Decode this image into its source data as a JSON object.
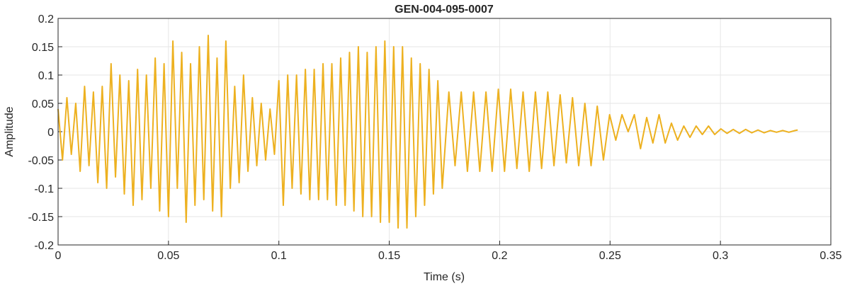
{
  "chart_data": {
    "type": "line",
    "title": "GEN-004-095-0007",
    "x_label": "Time (s)",
    "y_label": "Amplitude",
    "xlim": [
      0,
      0.35
    ],
    "ylim": [
      -0.2,
      0.2
    ],
    "xticks": [
      0,
      0.05,
      0.1,
      0.15,
      0.2,
      0.25,
      0.3,
      0.35
    ],
    "yticks": [
      -0.2,
      -0.15,
      -0.1,
      -0.05,
      0,
      0.05,
      0.1,
      0.15,
      0.2
    ],
    "grid": true,
    "series": [
      {
        "color": "#edb120",
        "x": [
          0,
          0.002,
          0.004,
          0.006,
          0.008,
          0.01,
          0.012,
          0.014,
          0.016,
          0.018,
          0.02,
          0.022,
          0.024,
          0.026,
          0.028,
          0.03,
          0.032,
          0.034,
          0.036,
          0.038,
          0.04,
          0.042,
          0.044,
          0.046,
          0.048,
          0.05,
          0.052,
          0.054,
          0.056,
          0.058,
          0.06,
          0.062,
          0.064,
          0.066,
          0.068,
          0.07,
          0.072,
          0.074,
          0.076,
          0.078,
          0.08,
          0.082,
          0.084,
          0.086,
          0.088,
          0.09,
          0.092,
          0.094,
          0.096,
          0.098,
          0.1,
          0.102,
          0.104,
          0.106,
          0.108,
          0.11,
          0.112,
          0.114,
          0.116,
          0.118,
          0.12,
          0.122,
          0.124,
          0.126,
          0.128,
          0.13,
          0.132,
          0.134,
          0.136,
          0.138,
          0.14,
          0.142,
          0.144,
          0.146,
          0.148,
          0.15,
          0.152,
          0.154,
          0.156,
          0.158,
          0.16,
          0.162,
          0.164,
          0.166,
          0.168,
          0.17,
          0.172,
          0.174,
          0.177,
          0.1798,
          0.1826,
          0.1854,
          0.1882,
          0.191,
          0.1938,
          0.1966,
          0.1994,
          0.2022,
          0.205,
          0.2078,
          0.2106,
          0.2134,
          0.2162,
          0.219,
          0.2218,
          0.2246,
          0.2274,
          0.2302,
          0.233,
          0.2358,
          0.2386,
          0.2414,
          0.2442,
          0.247,
          0.2498,
          0.2526,
          0.2554,
          0.2582,
          0.261,
          0.2638,
          0.2666,
          0.2694,
          0.2722,
          0.275,
          0.2778,
          0.2806,
          0.2834,
          0.2862,
          0.289,
          0.2918,
          0.2946,
          0.2974,
          0.3002,
          0.303,
          0.3058,
          0.3086,
          0.3114,
          0.3142,
          0.317,
          0.3198,
          0.3226,
          0.3254,
          0.3282,
          0.331,
          0.3338,
          0.335
        ],
        "values": [
          0.04,
          -0.05,
          0.06,
          -0.04,
          0.05,
          -0.07,
          0.08,
          -0.06,
          0.07,
          -0.09,
          0.08,
          -0.1,
          0.12,
          -0.08,
          0.1,
          -0.11,
          0.09,
          -0.13,
          0.11,
          -0.12,
          0.1,
          -0.1,
          0.13,
          -0.14,
          0.12,
          -0.15,
          0.16,
          -0.1,
          0.14,
          -0.16,
          0.12,
          -0.13,
          0.15,
          -0.12,
          0.17,
          -0.14,
          0.13,
          -0.15,
          0.16,
          -0.1,
          0.08,
          -0.09,
          0.1,
          -0.07,
          0.06,
          -0.06,
          0.05,
          -0.05,
          0.04,
          -0.04,
          0.09,
          -0.13,
          0.1,
          -0.1,
          0.1,
          -0.11,
          0.11,
          -0.12,
          0.11,
          -0.12,
          0.12,
          -0.12,
          0.12,
          -0.13,
          0.13,
          -0.13,
          0.14,
          -0.14,
          0.15,
          -0.15,
          0.14,
          -0.15,
          0.15,
          -0.16,
          0.16,
          -0.16,
          0.15,
          -0.17,
          0.15,
          -0.17,
          0.13,
          -0.15,
          0.12,
          -0.13,
          0.11,
          -0.11,
          0.09,
          -0.1,
          0.07,
          -0.06,
          0.07,
          -0.07,
          0.07,
          -0.07,
          0.07,
          -0.07,
          0.075,
          -0.07,
          0.075,
          -0.065,
          0.07,
          -0.07,
          0.07,
          -0.065,
          0.07,
          -0.06,
          0.065,
          -0.055,
          0.06,
          -0.06,
          0.05,
          -0.06,
          0.045,
          -0.05,
          0.03,
          -0.015,
          0.03,
          0,
          0.03,
          -0.03,
          0.025,
          -0.02,
          0.03,
          -0.02,
          0.015,
          -0.015,
          0.01,
          -0.01,
          0.01,
          -0.005,
          0.01,
          -0.005,
          0.005,
          -0.003,
          0.004,
          -0.003,
          0.004,
          -0.002,
          0.003,
          -0.002,
          0.002,
          -0.001,
          0.002,
          -0.001,
          0.002,
          0.003
        ]
      }
    ]
  }
}
